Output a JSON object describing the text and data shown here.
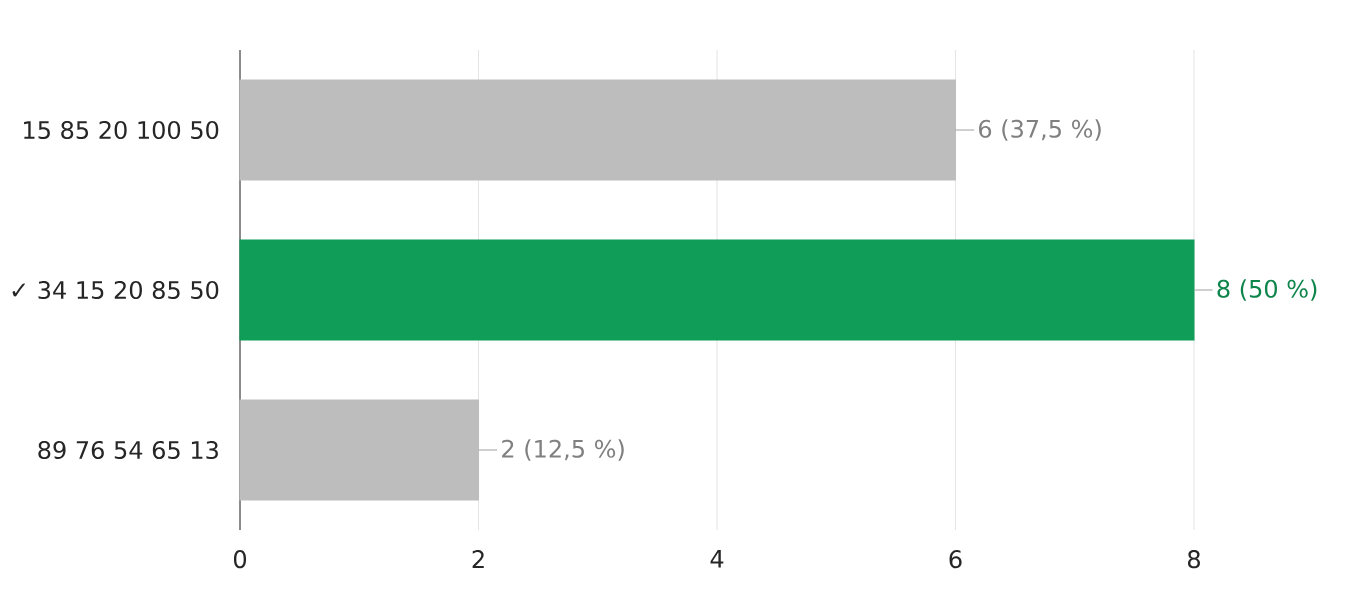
{
  "chart_data": {
    "type": "bar",
    "orientation": "horizontal",
    "categories": [
      "15 85 20 100 50",
      "✓ 34 15 20 85 50",
      "89 76 54 65 13"
    ],
    "values": [
      6,
      8,
      2
    ],
    "colors": [
      "#bdbdbd",
      "#0f9d58",
      "#bdbdbd"
    ],
    "value_labels": [
      "6 (37,5 %)",
      "8 (50 %)",
      "2 (12,5 %)"
    ],
    "xlim": [
      0,
      8
    ],
    "xticks": [
      0,
      2,
      4,
      6,
      8
    ],
    "grid": "x"
  }
}
